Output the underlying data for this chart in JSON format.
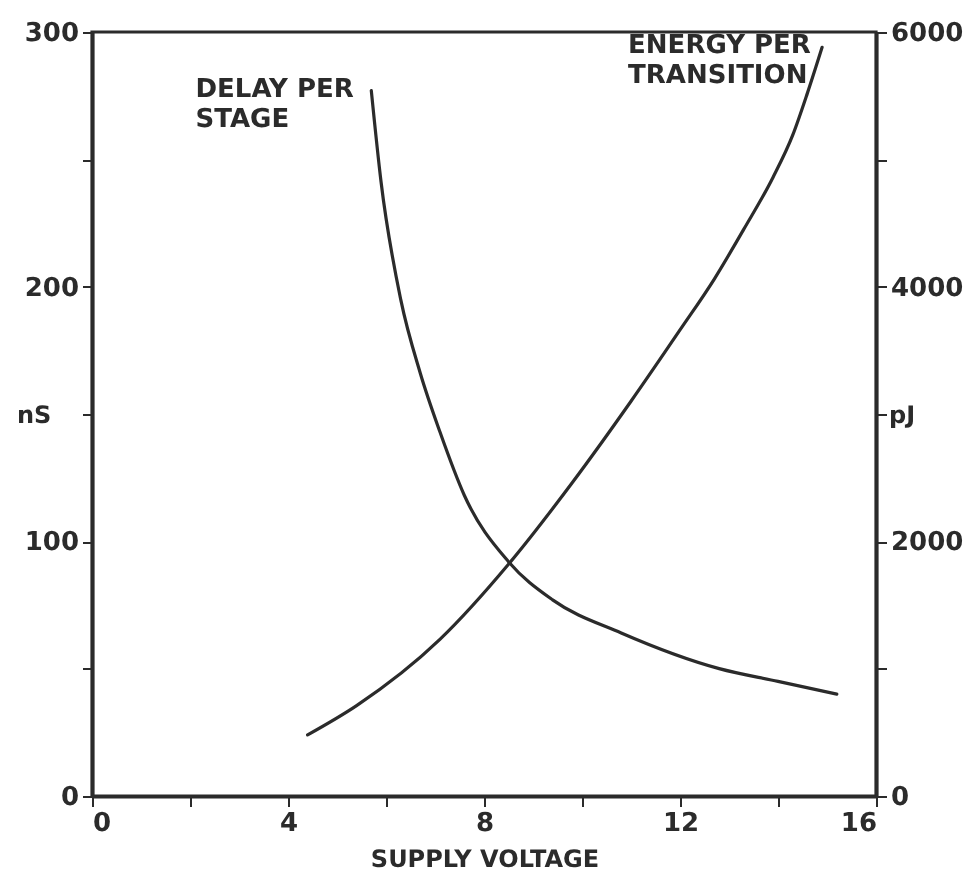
{
  "chart_data": {
    "type": "line",
    "xlabel": "SUPPLY VOLTAGE",
    "ylabel": "nS",
    "y2label": "pJ",
    "xlim": [
      0,
      16
    ],
    "xticks": [
      0,
      {
        "value": 2,
        "label": null
      },
      4,
      {
        "value": 6,
        "label": null
      },
      8,
      {
        "value": 10,
        "label": null
      },
      12,
      {
        "value": 14,
        "label": null
      },
      16
    ],
    "ylim": [
      0,
      300
    ],
    "yticks": [
      0,
      {
        "value": 50,
        "label": null
      },
      100,
      {
        "value": 150,
        "label": null
      },
      200,
      {
        "value": 250,
        "label": null
      },
      300
    ],
    "y2lim": [
      0,
      6000
    ],
    "y2ticks": [
      0,
      {
        "value": 1000,
        "label": null
      },
      2000,
      {
        "value": 3000,
        "label": null
      },
      4000,
      {
        "value": 5000,
        "label": null
      },
      6000
    ],
    "series": [
      {
        "name": "DELAY PER STAGE",
        "color": "#2b2b2b",
        "axis": "y",
        "x": [
          5.7,
          5.9,
          6.3,
          6.7,
          7.1,
          7.6,
          8.5,
          9.4,
          10.8,
          12.8,
          14.0,
          15.2
        ],
        "values": [
          277,
          241,
          195,
          166,
          143,
          118,
          92,
          77,
          64,
          50,
          45,
          40
        ]
      },
      {
        "name": "ENERGY PER TRANSITION",
        "color": "#2b2b2b",
        "axis": "y2",
        "x": [
          4.4,
          5.4,
          7.1,
          8.5,
          9.8,
          11.0,
          12.0,
          12.7,
          13.3,
          13.9,
          14.3,
          14.6,
          14.9
        ],
        "values": [
          480,
          710,
          1230,
          1820,
          2460,
          3100,
          3660,
          4060,
          4450,
          4860,
          5190,
          5520,
          5880
        ]
      }
    ]
  }
}
